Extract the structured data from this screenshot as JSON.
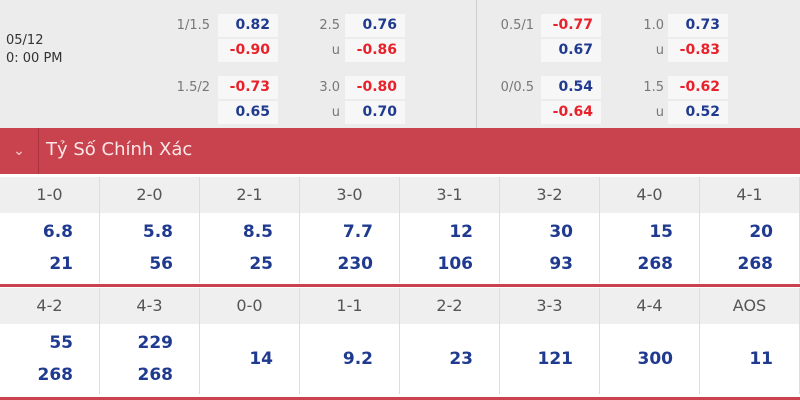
{
  "match": {
    "date": "05/12",
    "time": "0: 00 PM"
  },
  "left_odds": {
    "rows": [
      {
        "hdp": "1/1.5",
        "hdp_home": "0.82",
        "hdp_away": "-0.90",
        "ou": "2.5",
        "over": "0.76",
        "under_label": "u",
        "under": "-0.86"
      },
      {
        "hdp": "1.5/2",
        "hdp_home": "-0.73",
        "hdp_away": "0.65",
        "ou": "3.0",
        "over": "-0.80",
        "under_label": "u",
        "under": "0.70"
      }
    ]
  },
  "right_odds": {
    "rows": [
      {
        "hdp": "0.5/1",
        "hdp_home": "-0.77",
        "hdp_away": "0.67",
        "ou": "1.0",
        "over": "0.73",
        "under_label": "u",
        "under": "-0.83"
      },
      {
        "hdp": "0/0.5",
        "hdp_home": "0.54",
        "hdp_away": "-0.64",
        "ou": "1.5",
        "over": "-0.62",
        "under_label": "u",
        "under": "0.52"
      }
    ]
  },
  "section": {
    "title": "Tỷ Số Chính Xác",
    "collapse_icon": "chevron-down-icon"
  },
  "scores_row1": [
    {
      "score": "1-0",
      "home": "6.8",
      "away": "21"
    },
    {
      "score": "2-0",
      "home": "5.8",
      "away": "56"
    },
    {
      "score": "2-1",
      "home": "8.5",
      "away": "25"
    },
    {
      "score": "3-0",
      "home": "7.7",
      "away": "230"
    },
    {
      "score": "3-1",
      "home": "12",
      "away": "106"
    },
    {
      "score": "3-2",
      "home": "30",
      "away": "93"
    },
    {
      "score": "4-0",
      "home": "15",
      "away": "268"
    },
    {
      "score": "4-1",
      "home": "20",
      "away": "268"
    }
  ],
  "scores_row2": [
    {
      "score": "4-2",
      "home": "55",
      "away": "268"
    },
    {
      "score": "4-3",
      "home": "229",
      "away": "268"
    },
    {
      "score": "0-0",
      "single": "14"
    },
    {
      "score": "1-1",
      "single": "9.2"
    },
    {
      "score": "2-2",
      "single": "23"
    },
    {
      "score": "3-3",
      "single": "121"
    },
    {
      "score": "4-4",
      "single": "300"
    },
    {
      "score": "AOS",
      "single": "11"
    }
  ],
  "colors": {
    "accent": "#c9434e",
    "positive": "#1f3a8f",
    "negative": "#e8212b"
  }
}
